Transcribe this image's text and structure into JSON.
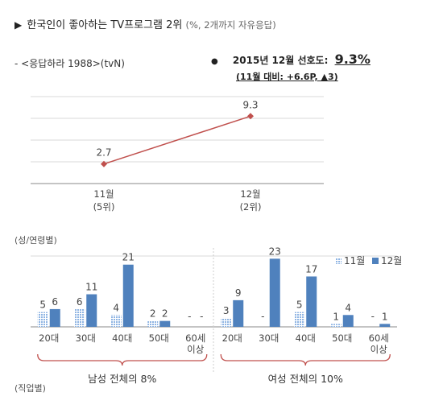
{
  "header": {
    "title": "한국인이 좋아하는 TV프로그램 2위",
    "title_note": "(%, 2개까지 자유응답)",
    "program": "- <응답하라 1988>(tvN)"
  },
  "rating": {
    "label": "2015년 12월 선호도:",
    "value": "9.3%",
    "change": "(11월 대비: +6.6P, ▲3)"
  },
  "sections": {
    "gender_age": "(성/연령별)",
    "occupation": "(직업별)"
  },
  "chart_data": [
    {
      "type": "line",
      "categories": [
        "11월\n(5위)",
        "12월\n(2위)"
      ],
      "values": [
        2.7,
        9.3
      ],
      "data_labels": [
        "2.7",
        "9.3"
      ],
      "ylim": [
        0,
        12
      ],
      "grid": true,
      "color": "#c0504d"
    },
    {
      "type": "bar",
      "categories": [
        "20대",
        "30대",
        "40대",
        "50대",
        "60세\n이상",
        "20대",
        "30대",
        "40대",
        "50대",
        "60세\n이상"
      ],
      "series": [
        {
          "name": "11월",
          "values": [
            5,
            6,
            4,
            2,
            null,
            3,
            null,
            5,
            1,
            null
          ],
          "labels": [
            "5",
            "6",
            "4",
            "2",
            "-",
            "3",
            "-",
            "5",
            "1",
            "-"
          ],
          "color": "#8eb4e3",
          "pattern": "dotted"
        },
        {
          "name": "12월",
          "values": [
            6,
            11,
            21,
            2,
            null,
            9,
            23,
            17,
            4,
            1
          ],
          "labels": [
            "6",
            "11",
            "21",
            "2",
            "-",
            "9",
            "23",
            "17",
            "4",
            "1"
          ],
          "color": "#4f81bd",
          "pattern": "solid"
        }
      ],
      "groups": [
        {
          "label": "남성 전체의 8%"
        },
        {
          "label": "여성 전체의 10%"
        }
      ],
      "legend": "top-right",
      "ylim": [
        0,
        25
      ]
    }
  ]
}
